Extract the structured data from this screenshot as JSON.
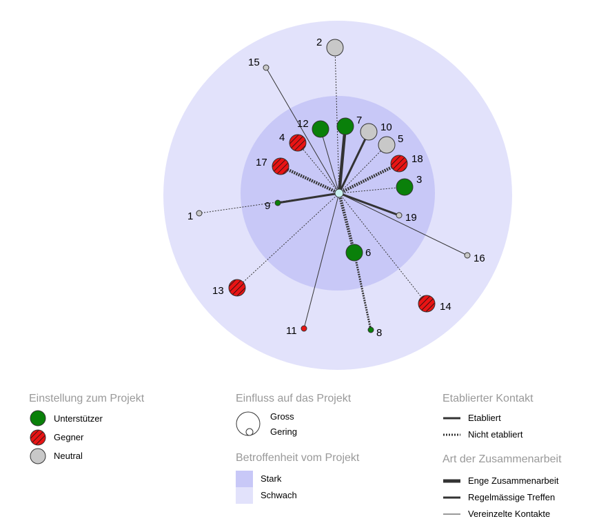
{
  "colors": {
    "outer_zone": "#e2e2fb",
    "inner_zone": "#c8c8f7",
    "supporter": "#0a800a",
    "opponent": "#e81414",
    "neutral": "#c8c8c8",
    "center": "#c8f0f0",
    "link": "#333333"
  },
  "nodes": [
    {
      "id": "1",
      "attitude": "neutral",
      "size": "small",
      "contact": "not_established",
      "cooperation": "sporadic"
    },
    {
      "id": "2",
      "attitude": "neutral",
      "size": "large",
      "contact": "not_established",
      "cooperation": "sporadic"
    },
    {
      "id": "3",
      "attitude": "supporter",
      "size": "large",
      "contact": "not_established",
      "cooperation": "sporadic"
    },
    {
      "id": "4",
      "attitude": "opponent",
      "size": "large",
      "contact": "not_established",
      "cooperation": "sporadic"
    },
    {
      "id": "5",
      "attitude": "neutral",
      "size": "large",
      "contact": "not_established",
      "cooperation": "sporadic"
    },
    {
      "id": "6",
      "attitude": "supporter",
      "size": "large",
      "contact": "not_established",
      "cooperation": "close"
    },
    {
      "id": "7",
      "attitude": "supporter",
      "size": "large",
      "contact": "established",
      "cooperation": "close"
    },
    {
      "id": "8",
      "attitude": "supporter",
      "size": "small",
      "contact": "not_established",
      "cooperation": "regular",
      "from": "6"
    },
    {
      "id": "9",
      "attitude": "supporter",
      "size": "small",
      "contact": "established",
      "cooperation": "regular"
    },
    {
      "id": "10",
      "attitude": "neutral",
      "size": "large",
      "contact": "established",
      "cooperation": "regular"
    },
    {
      "id": "11",
      "attitude": "opponent",
      "size": "small",
      "contact": "established",
      "cooperation": "sporadic"
    },
    {
      "id": "12",
      "attitude": "supporter",
      "size": "large",
      "contact": "established",
      "cooperation": "sporadic"
    },
    {
      "id": "13",
      "attitude": "opponent",
      "size": "large",
      "contact": "not_established",
      "cooperation": "sporadic"
    },
    {
      "id": "14",
      "attitude": "opponent",
      "size": "large",
      "contact": "not_established",
      "cooperation": "sporadic"
    },
    {
      "id": "15",
      "attitude": "neutral",
      "size": "small",
      "contact": "established",
      "cooperation": "sporadic"
    },
    {
      "id": "16",
      "attitude": "neutral",
      "size": "small",
      "contact": "established",
      "cooperation": "sporadic"
    },
    {
      "id": "17",
      "attitude": "opponent",
      "size": "large",
      "contact": "not_established",
      "cooperation": "close"
    },
    {
      "id": "18",
      "attitude": "opponent",
      "size": "large",
      "contact": "not_established",
      "cooperation": "close"
    },
    {
      "id": "19",
      "attitude": "neutral",
      "size": "small",
      "contact": "established",
      "cooperation": "regular"
    }
  ],
  "legend": {
    "attitude": {
      "title": "Einstellung zum Projekt",
      "supporter": "Unterstützer",
      "opponent": "Gegner",
      "neutral": "Neutral"
    },
    "influence": {
      "title": "Einfluss auf das Projekt",
      "large": "Gross",
      "small": "Gering"
    },
    "affectedness": {
      "title": "Betroffenheit vom Projekt",
      "strong": "Stark",
      "weak": "Schwach"
    },
    "contact": {
      "title": "Etablierter Kontakt",
      "established": "Etabliert",
      "not_established": "Nicht etabliert"
    },
    "cooperation": {
      "title": "Art der Zusammenarbeit",
      "close": "Enge Zusammenarbeit",
      "regular": "Regelmässige Treffen",
      "sporadic": "Vereinzelte Kontakte"
    }
  }
}
